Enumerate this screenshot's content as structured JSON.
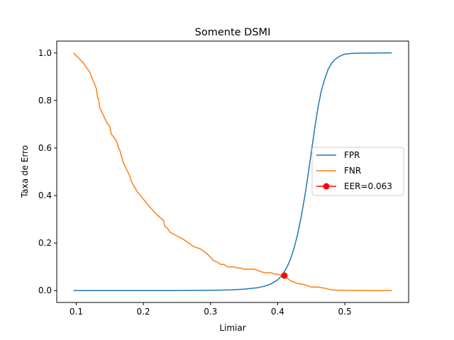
{
  "chart_data": {
    "type": "line",
    "title": "Somente DSMI",
    "xlabel": "Limiar",
    "ylabel": "Taxa de Erro",
    "xlim": [
      0.071,
      0.595
    ],
    "ylim": [
      -0.05,
      1.05
    ],
    "xticks": [
      0.1,
      0.2,
      0.3,
      0.4,
      0.5
    ],
    "xtick_labels": [
      "0.1",
      "0.2",
      "0.3",
      "0.4",
      "0.5"
    ],
    "yticks": [
      0.0,
      0.2,
      0.4,
      0.6,
      0.8,
      1.0
    ],
    "ytick_labels": [
      "0.0",
      "0.2",
      "0.4",
      "0.6",
      "0.8",
      "1.0"
    ],
    "grid": false,
    "legend_position": "center-right",
    "series": [
      {
        "name": "FPR",
        "color": "#1f77b4",
        "x": [
          0.096,
          0.15,
          0.2,
          0.25,
          0.3,
          0.33,
          0.35,
          0.37,
          0.38,
          0.39,
          0.4,
          0.405,
          0.41,
          0.415,
          0.42,
          0.425,
          0.43,
          0.435,
          0.44,
          0.445,
          0.45,
          0.455,
          0.46,
          0.465,
          0.47,
          0.475,
          0.48,
          0.485,
          0.49,
          0.495,
          0.5,
          0.51,
          0.52,
          0.55,
          0.57
        ],
        "y": [
          0.0,
          0.0,
          0.0,
          0.0,
          0.001,
          0.003,
          0.006,
          0.012,
          0.018,
          0.028,
          0.045,
          0.06,
          0.08,
          0.105,
          0.14,
          0.185,
          0.24,
          0.31,
          0.39,
          0.48,
          0.58,
          0.68,
          0.77,
          0.84,
          0.89,
          0.93,
          0.955,
          0.972,
          0.982,
          0.99,
          0.995,
          0.998,
          0.999,
          1.0,
          1.0
        ]
      },
      {
        "name": "FNR",
        "color": "#ff7f0e",
        "x": [
          0.096,
          0.11,
          0.12,
          0.125,
          0.13,
          0.132,
          0.133,
          0.135,
          0.14,
          0.145,
          0.15,
          0.152,
          0.16,
          0.163,
          0.165,
          0.168,
          0.17,
          0.175,
          0.18,
          0.182,
          0.19,
          0.2,
          0.21,
          0.22,
          0.23,
          0.232,
          0.235,
          0.24,
          0.25,
          0.26,
          0.265,
          0.27,
          0.275,
          0.28,
          0.285,
          0.29,
          0.295,
          0.3,
          0.305,
          0.31,
          0.315,
          0.32,
          0.325,
          0.33,
          0.335,
          0.34,
          0.345,
          0.35,
          0.355,
          0.36,
          0.365,
          0.37,
          0.375,
          0.38,
          0.39,
          0.395,
          0.4,
          0.405,
          0.41,
          0.415,
          0.42,
          0.425,
          0.43,
          0.44,
          0.45,
          0.46,
          0.47,
          0.48,
          0.49,
          0.5,
          0.55,
          0.57
        ],
        "y": [
          1.0,
          0.96,
          0.92,
          0.885,
          0.85,
          0.81,
          0.81,
          0.77,
          0.74,
          0.71,
          0.69,
          0.66,
          0.63,
          0.6,
          0.59,
          0.56,
          0.54,
          0.51,
          0.48,
          0.46,
          0.42,
          0.385,
          0.35,
          0.32,
          0.295,
          0.27,
          0.265,
          0.245,
          0.23,
          0.215,
          0.205,
          0.195,
          0.185,
          0.18,
          0.175,
          0.165,
          0.155,
          0.14,
          0.125,
          0.12,
          0.11,
          0.11,
          0.1,
          0.1,
          0.1,
          0.095,
          0.095,
          0.09,
          0.09,
          0.09,
          0.09,
          0.085,
          0.08,
          0.075,
          0.075,
          0.07,
          0.068,
          0.065,
          0.062,
          0.05,
          0.04,
          0.035,
          0.03,
          0.025,
          0.015,
          0.015,
          0.01,
          0.003,
          0.002,
          0.001,
          0.0,
          0.0
        ]
      }
    ],
    "eer": {
      "name": "EER=0.063",
      "color": "#ff0000",
      "x": 0.41,
      "y": 0.063
    },
    "legend": [
      "FPR",
      "FNR",
      "EER=0.063"
    ]
  }
}
